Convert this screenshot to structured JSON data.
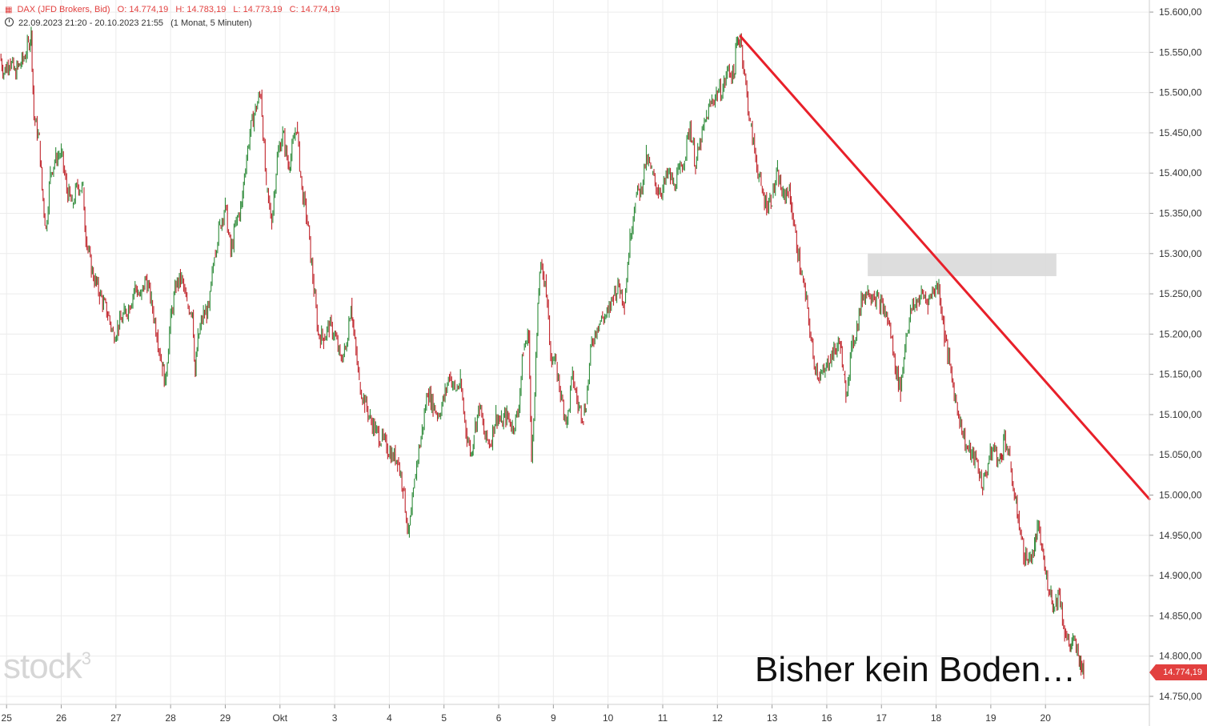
{
  "header": {
    "instrument": "DAX (JFD Brokers, Bid)",
    "open": "O: 14.774,19",
    "high": "H: 14.783,19",
    "low": "L: 14.773,19",
    "close": "C: 14.774,19",
    "period": "22.09.2023 21:20 - 20.10.2023 21:55",
    "interval": "(1 Monat, 5 Minuten)"
  },
  "watermark": "stock",
  "watermark_sup": "3",
  "annotation_text": "Bisher kein Boden…",
  "last_price_label": "14.774,19",
  "colors": {
    "up": "#2e8b3a",
    "down": "#c0242b",
    "trendline": "#e8202a",
    "zone": "#d9d9d9",
    "grid": "#ececec",
    "last_price": "#e2403f"
  },
  "icons": {
    "chart_type": "candlestick-icon",
    "period": "clock-icon"
  },
  "chart_data": {
    "type": "line",
    "title": "",
    "xlabel": "",
    "ylabel": "",
    "ylim": [
      14740,
      15615
    ],
    "y_ticks": [
      {
        "value": 15600,
        "label": "15.600,00"
      },
      {
        "value": 15550,
        "label": "15.550,00"
      },
      {
        "value": 15500,
        "label": "15.500,00"
      },
      {
        "value": 15450,
        "label": "15.450,00"
      },
      {
        "value": 15400,
        "label": "15.400,00"
      },
      {
        "value": 15350,
        "label": "15.350,00"
      },
      {
        "value": 15300,
        "label": "15.300,00"
      },
      {
        "value": 15250,
        "label": "15.250,00"
      },
      {
        "value": 15200,
        "label": "15.200,00"
      },
      {
        "value": 15150,
        "label": "15.150,00"
      },
      {
        "value": 15100,
        "label": "15.100,00"
      },
      {
        "value": 15050,
        "label": "15.050,00"
      },
      {
        "value": 15000,
        "label": "15.000,00"
      },
      {
        "value": 14950,
        "label": "14.950,00"
      },
      {
        "value": 14900,
        "label": "14.900,00"
      },
      {
        "value": 14850,
        "label": "14.850,00"
      },
      {
        "value": 14800,
        "label": "14.800,00"
      },
      {
        "value": 14750,
        "label": "14.750,00"
      }
    ],
    "x_ticks": [
      "25",
      "26",
      "27",
      "28",
      "29",
      "Okt",
      "3",
      "4",
      "5",
      "6",
      "9",
      "10",
      "11",
      "12",
      "13",
      "16",
      "17",
      "18",
      "19",
      "20"
    ],
    "x_tick_positions": [
      0,
      1,
      2,
      3,
      4,
      5,
      6,
      7,
      8,
      9,
      10,
      11,
      12,
      13,
      14,
      15,
      16,
      17,
      18,
      19
    ],
    "x_range": [
      -0.12,
      20.9
    ],
    "series": [
      {
        "values": [
          [
            -0.12,
            15545
          ],
          [
            -0.05,
            15525
          ],
          [
            0.05,
            15540
          ],
          [
            0.15,
            15525
          ],
          [
            0.3,
            15540
          ],
          [
            0.4,
            15560
          ],
          [
            0.45,
            15575
          ],
          [
            0.5,
            15470
          ],
          [
            0.6,
            15440
          ],
          [
            0.65,
            15380
          ],
          [
            0.72,
            15330
          ],
          [
            0.8,
            15400
          ],
          [
            0.9,
            15420
          ],
          [
            1.0,
            15425
          ],
          [
            1.1,
            15380
          ],
          [
            1.2,
            15360
          ],
          [
            1.3,
            15385
          ],
          [
            1.4,
            15380
          ],
          [
            1.45,
            15320
          ],
          [
            1.55,
            15280
          ],
          [
            1.7,
            15250
          ],
          [
            1.85,
            15225
          ],
          [
            1.95,
            15200
          ],
          [
            2.05,
            15210
          ],
          [
            2.15,
            15225
          ],
          [
            2.25,
            15235
          ],
          [
            2.35,
            15260
          ],
          [
            2.45,
            15245
          ],
          [
            2.55,
            15270
          ],
          [
            2.65,
            15240
          ],
          [
            2.75,
            15200
          ],
          [
            2.85,
            15160
          ],
          [
            2.9,
            15140
          ],
          [
            3.0,
            15220
          ],
          [
            3.1,
            15260
          ],
          [
            3.2,
            15270
          ],
          [
            3.3,
            15235
          ],
          [
            3.4,
            15230
          ],
          [
            3.45,
            15150
          ],
          [
            3.5,
            15195
          ],
          [
            3.6,
            15225
          ],
          [
            3.7,
            15230
          ],
          [
            3.8,
            15300
          ],
          [
            3.9,
            15335
          ],
          [
            4.0,
            15360
          ],
          [
            4.1,
            15300
          ],
          [
            4.2,
            15340
          ],
          [
            4.3,
            15360
          ],
          [
            4.35,
            15400
          ],
          [
            4.45,
            15450
          ],
          [
            4.55,
            15480
          ],
          [
            4.65,
            15500
          ],
          [
            4.75,
            15380
          ],
          [
            4.85,
            15340
          ],
          [
            4.95,
            15420
          ],
          [
            5.05,
            15450
          ],
          [
            5.15,
            15410
          ],
          [
            5.2,
            15420
          ],
          [
            5.3,
            15460
          ],
          [
            5.4,
            15380
          ],
          [
            5.5,
            15340
          ],
          [
            5.6,
            15270
          ],
          [
            5.7,
            15200
          ],
          [
            5.8,
            15195
          ],
          [
            5.9,
            15210
          ],
          [
            6.0,
            15200
          ],
          [
            6.1,
            15170
          ],
          [
            6.2,
            15180
          ],
          [
            6.3,
            15240
          ],
          [
            6.35,
            15200
          ],
          [
            6.45,
            15140
          ],
          [
            6.55,
            15115
          ],
          [
            6.65,
            15095
          ],
          [
            6.75,
            15080
          ],
          [
            6.85,
            15070
          ],
          [
            6.95,
            15060
          ],
          [
            7.05,
            15050
          ],
          [
            7.15,
            15045
          ],
          [
            7.25,
            15010
          ],
          [
            7.35,
            14950
          ],
          [
            7.4,
            14975
          ],
          [
            7.5,
            15040
          ],
          [
            7.6,
            15080
          ],
          [
            7.7,
            15130
          ],
          [
            7.8,
            15110
          ],
          [
            7.9,
            15100
          ],
          [
            8.0,
            15120
          ],
          [
            8.1,
            15150
          ],
          [
            8.2,
            15130
          ],
          [
            8.3,
            15140
          ],
          [
            8.4,
            15080
          ],
          [
            8.5,
            15050
          ],
          [
            8.55,
            15080
          ],
          [
            8.65,
            15110
          ],
          [
            8.75,
            15070
          ],
          [
            8.85,
            15065
          ],
          [
            8.95,
            15100
          ],
          [
            9.05,
            15090
          ],
          [
            9.15,
            15100
          ],
          [
            9.25,
            15085
          ],
          [
            9.35,
            15100
          ],
          [
            9.45,
            15180
          ],
          [
            9.55,
            15200
          ],
          [
            9.6,
            15040
          ],
          [
            9.7,
            15200
          ],
          [
            9.75,
            15280
          ],
          [
            9.85,
            15270
          ],
          [
            9.95,
            15175
          ],
          [
            10.05,
            15160
          ],
          [
            10.15,
            15120
          ],
          [
            10.25,
            15090
          ],
          [
            10.35,
            15150
          ],
          [
            10.45,
            15110
          ],
          [
            10.55,
            15100
          ],
          [
            10.6,
            15115
          ],
          [
            10.7,
            15190
          ],
          [
            10.8,
            15210
          ],
          [
            10.9,
            15220
          ],
          [
            11.0,
            15225
          ],
          [
            11.1,
            15250
          ],
          [
            11.2,
            15260
          ],
          [
            11.3,
            15240
          ],
          [
            11.4,
            15320
          ],
          [
            11.5,
            15370
          ],
          [
            11.6,
            15380
          ],
          [
            11.7,
            15420
          ],
          [
            11.8,
            15400
          ],
          [
            11.9,
            15380
          ],
          [
            12.0,
            15380
          ],
          [
            12.1,
            15400
          ],
          [
            12.2,
            15385
          ],
          [
            12.3,
            15400
          ],
          [
            12.4,
            15420
          ],
          [
            12.5,
            15460
          ],
          [
            12.6,
            15410
          ],
          [
            12.7,
            15440
          ],
          [
            12.8,
            15470
          ],
          [
            12.9,
            15490
          ],
          [
            13.0,
            15500
          ],
          [
            13.1,
            15505
          ],
          [
            13.2,
            15530
          ],
          [
            13.3,
            15520
          ],
          [
            13.35,
            15560
          ],
          [
            13.42,
            15570
          ],
          [
            13.5,
            15520
          ],
          [
            13.6,
            15460
          ],
          [
            13.7,
            15420
          ],
          [
            13.8,
            15380
          ],
          [
            13.9,
            15360
          ],
          [
            14.0,
            15370
          ],
          [
            14.1,
            15400
          ],
          [
            14.2,
            15370
          ],
          [
            14.3,
            15380
          ],
          [
            14.35,
            15360
          ],
          [
            14.45,
            15310
          ],
          [
            14.55,
            15270
          ],
          [
            14.65,
            15230
          ],
          [
            14.75,
            15170
          ],
          [
            14.85,
            15150
          ],
          [
            14.95,
            15150
          ],
          [
            15.05,
            15170
          ],
          [
            15.15,
            15180
          ],
          [
            15.25,
            15190
          ],
          [
            15.3,
            15150
          ],
          [
            15.35,
            15125
          ],
          [
            15.45,
            15180
          ],
          [
            15.55,
            15210
          ],
          [
            15.65,
            15245
          ],
          [
            15.75,
            15255
          ],
          [
            15.85,
            15250
          ],
          [
            15.95,
            15240
          ],
          [
            16.05,
            15230
          ],
          [
            16.15,
            15210
          ],
          [
            16.25,
            15160
          ],
          [
            16.35,
            15130
          ],
          [
            16.45,
            15200
          ],
          [
            16.55,
            15230
          ],
          [
            16.65,
            15240
          ],
          [
            16.75,
            15250
          ],
          [
            16.85,
            15240
          ],
          [
            16.95,
            15255
          ],
          [
            17.05,
            15260
          ],
          [
            17.15,
            15200
          ],
          [
            17.25,
            15160
          ],
          [
            17.35,
            15120
          ],
          [
            17.45,
            15090
          ],
          [
            17.55,
            15060
          ],
          [
            17.65,
            15050
          ],
          [
            17.75,
            15040
          ],
          [
            17.85,
            15010
          ],
          [
            17.95,
            15040
          ],
          [
            18.05,
            15060
          ],
          [
            18.15,
            15040
          ],
          [
            18.2,
            15050
          ],
          [
            18.25,
            15075
          ],
          [
            18.35,
            15040
          ],
          [
            18.45,
            14990
          ],
          [
            18.5,
            14975
          ],
          [
            18.6,
            14925
          ],
          [
            18.7,
            14920
          ],
          [
            18.8,
            14935
          ],
          [
            18.85,
            14960
          ],
          [
            18.95,
            14930
          ],
          [
            19.0,
            14900
          ],
          [
            19.1,
            14880
          ],
          [
            19.15,
            14860
          ],
          [
            19.25,
            14880
          ],
          [
            19.35,
            14830
          ],
          [
            19.45,
            14810
          ],
          [
            19.5,
            14820
          ],
          [
            19.6,
            14800
          ],
          [
            19.65,
            14790
          ],
          [
            19.7,
            14775
          ]
        ]
      }
    ],
    "trendline": {
      "x1": 13.42,
      "y1": 15570,
      "x2": 20.9,
      "y2": 14995
    },
    "resistance_zone": {
      "x1": 15.75,
      "x2": 19.2,
      "y1": 15272,
      "y2": 15300
    }
  }
}
